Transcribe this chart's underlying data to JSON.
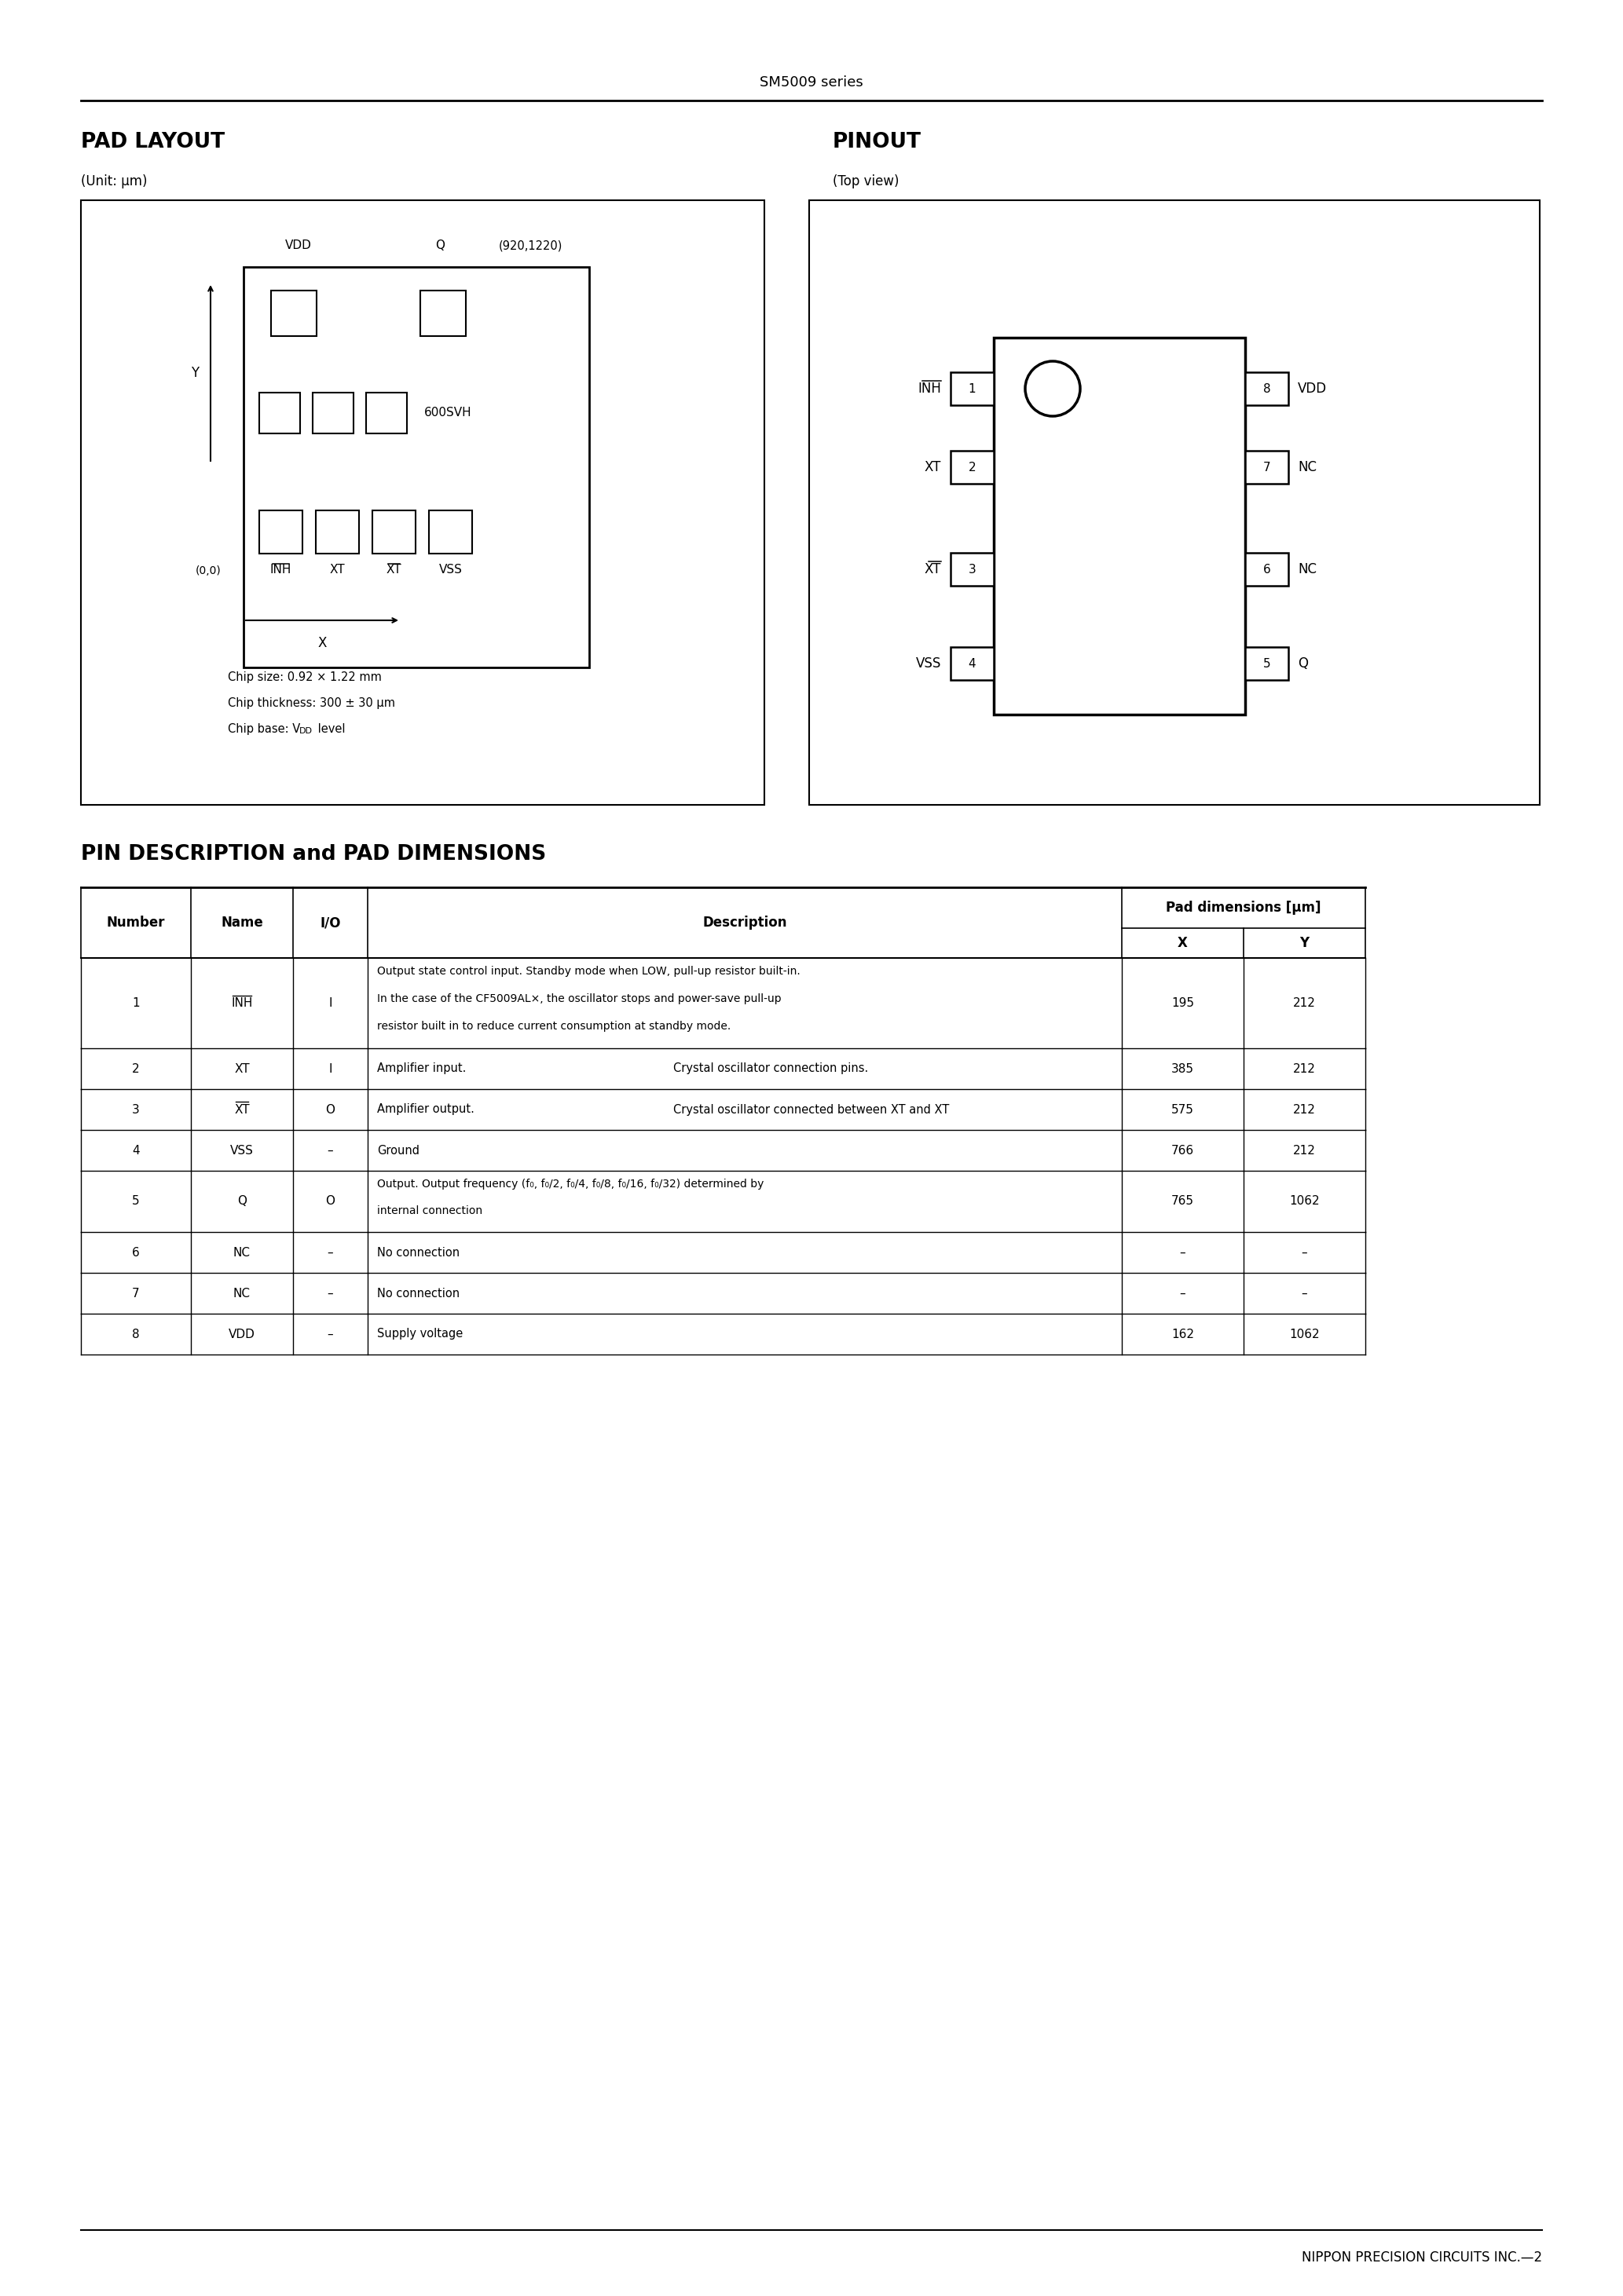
{
  "page_title": "SM5009 series",
  "section1_title": "PAD LAYOUT",
  "section1_unit": "(Unit: μm)",
  "section2_title": "PINOUT",
  "section2_unit": "(Top view)",
  "chip_info": [
    "Chip size: 0.92 × 1.22 mm",
    "Chip thickness: 300 ± 30 μm",
    "Chip base: Vᴅᴅ level"
  ],
  "pinout_left": [
    {
      "pin": 1,
      "name": "INH",
      "overline": true
    },
    {
      "pin": 2,
      "name": "XT",
      "overline": false
    },
    {
      "pin": 3,
      "name": "XT",
      "overline": true
    },
    {
      "pin": 4,
      "name": "VSS",
      "overline": false
    }
  ],
  "pinout_right": [
    {
      "pin": 8,
      "name": "VDD"
    },
    {
      "pin": 7,
      "name": "NC"
    },
    {
      "pin": 6,
      "name": "NC"
    },
    {
      "pin": 5,
      "name": "Q"
    }
  ],
  "table_section_title": "PIN DESCRIPTION and PAD DIMENSIONS",
  "table_rows": [
    {
      "number": "1",
      "name": "INH",
      "name_overline": true,
      "io": "I",
      "desc_main": "Output state control input. Standby mode when LOW, pull-up resistor built-in.\nIn the case of the CF5009AL×, the oscillator stops and power-save pull-up\nresistor built in to reduce current consumption at standby mode.",
      "x": "195",
      "y": "212"
    },
    {
      "number": "2",
      "name": "XT",
      "name_overline": false,
      "io": "I",
      "desc_left": "Amplifier input.",
      "desc_right": "Crystal oscillator connection pins.",
      "x": "385",
      "y": "212"
    },
    {
      "number": "3",
      "name": "XT",
      "name_overline": true,
      "io": "O",
      "desc_left": "Amplifier output.",
      "desc_right": "Crystal oscillator connected between XT and XT̅",
      "x": "575",
      "y": "212"
    },
    {
      "number": "4",
      "name": "VSS",
      "name_overline": false,
      "io": "–",
      "desc_main": "Ground",
      "x": "766",
      "y": "212"
    },
    {
      "number": "5",
      "name": "Q",
      "name_overline": false,
      "io": "O",
      "desc_main": "Output. Output frequency (f₀, f₀/2, f₀/4, f₀/8, f₀/16, f₀/32) determined by\ninternal connection",
      "x": "765",
      "y": "1062"
    },
    {
      "number": "6",
      "name": "NC",
      "name_overline": false,
      "io": "–",
      "desc_main": "No connection",
      "x": "–",
      "y": "–"
    },
    {
      "number": "7",
      "name": "NC",
      "name_overline": false,
      "io": "–",
      "desc_main": "No connection",
      "x": "–",
      "y": "–"
    },
    {
      "number": "8",
      "name": "VDD",
      "name_overline": false,
      "io": "–",
      "desc_main": "Supply voltage",
      "x": "162",
      "y": "1062"
    }
  ],
  "footer": "NIPPON PRECISION CIRCUITS INC.—2"
}
